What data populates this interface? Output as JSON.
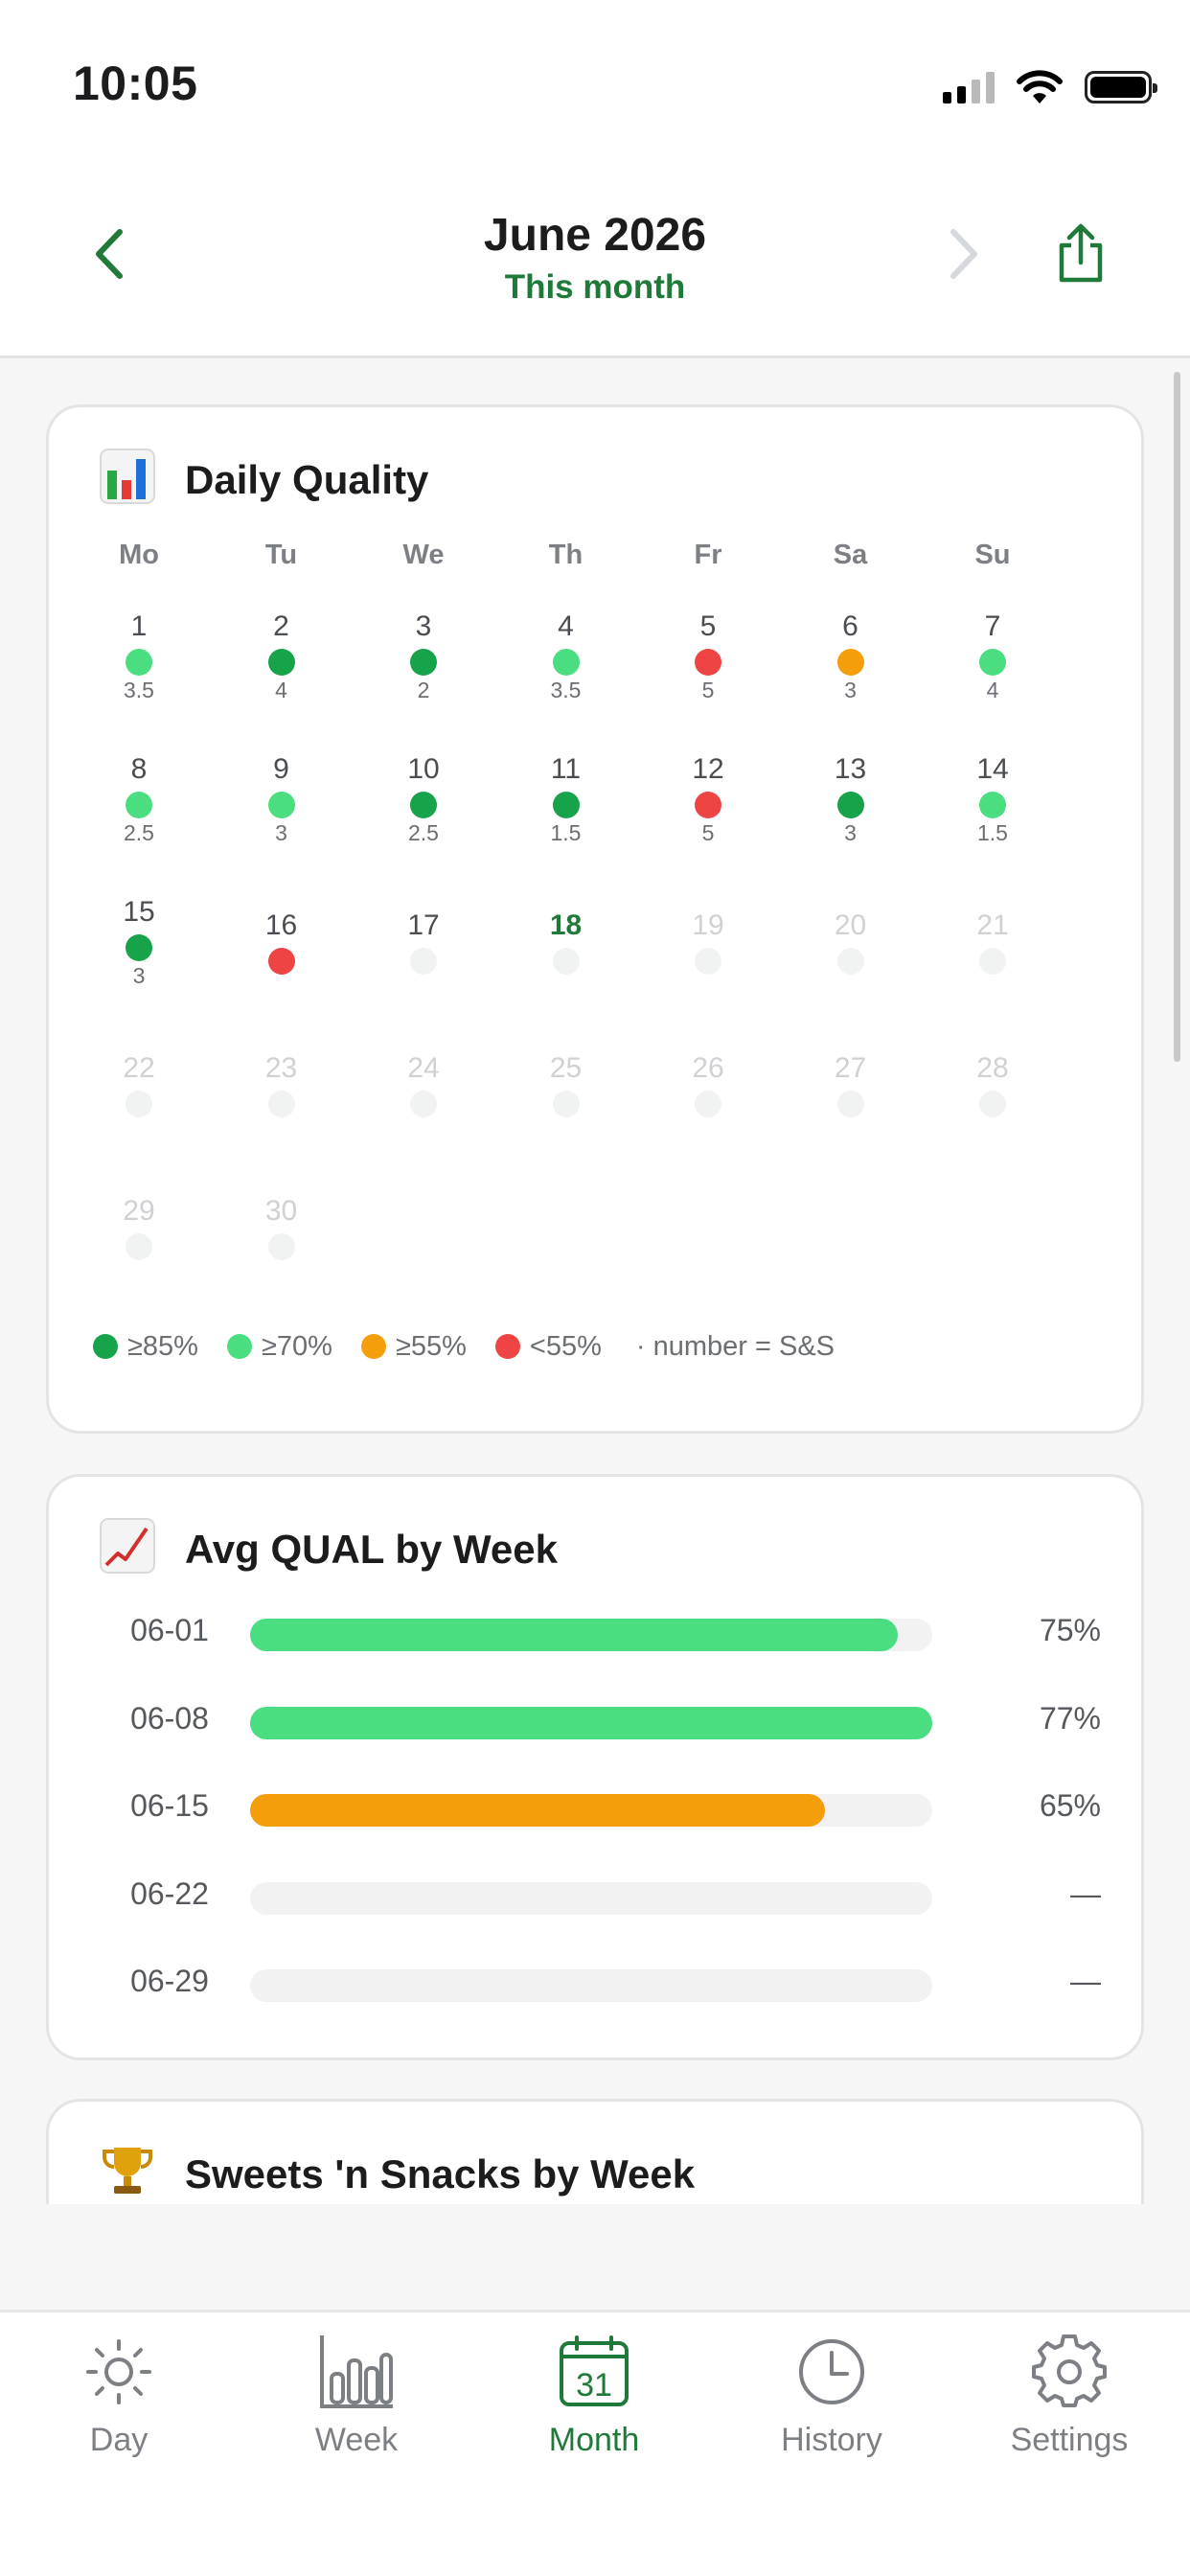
{
  "status_bar": {
    "time": "10:05"
  },
  "header": {
    "title": "June 2026",
    "subtitle": "This month"
  },
  "colors": {
    "accent": "#1f7a3a",
    "q85": "#16a34a",
    "q70": "#4ade80",
    "q55": "#f59e0b",
    "qlow": "#ef4444",
    "empty": "#f0f1f0"
  },
  "daily_quality": {
    "icon": "bar-chart-emoji",
    "title": "Daily Quality",
    "weekdays": [
      "Mo",
      "Tu",
      "We",
      "Th",
      "Fr",
      "Sa",
      "Su"
    ],
    "days": [
      {
        "day": "1",
        "status": "q70",
        "value": "3.5"
      },
      {
        "day": "2",
        "status": "q85",
        "value": "4"
      },
      {
        "day": "3",
        "status": "q85",
        "value": "2"
      },
      {
        "day": "4",
        "status": "q70",
        "value": "3.5"
      },
      {
        "day": "5",
        "status": "qlow",
        "value": "5"
      },
      {
        "day": "6",
        "status": "q55",
        "value": "3"
      },
      {
        "day": "7",
        "status": "q70",
        "value": "4"
      },
      {
        "day": "8",
        "status": "q70",
        "value": "2.5"
      },
      {
        "day": "9",
        "status": "q70",
        "value": "3"
      },
      {
        "day": "10",
        "status": "q85",
        "value": "2.5"
      },
      {
        "day": "11",
        "status": "q85",
        "value": "1.5"
      },
      {
        "day": "12",
        "status": "qlow",
        "value": "5"
      },
      {
        "day": "13",
        "status": "q85",
        "value": "3"
      },
      {
        "day": "14",
        "status": "q70",
        "value": "1.5"
      },
      {
        "day": "15",
        "status": "q85",
        "value": "3"
      },
      {
        "day": "16",
        "status": "qlow",
        "value": ""
      },
      {
        "day": "17",
        "status": "empty",
        "value": ""
      },
      {
        "day": "18",
        "status": "empty",
        "value": "",
        "today": true
      },
      {
        "day": "19",
        "status": "future",
        "value": ""
      },
      {
        "day": "20",
        "status": "future",
        "value": ""
      },
      {
        "day": "21",
        "status": "future",
        "value": ""
      },
      {
        "day": "22",
        "status": "future",
        "value": ""
      },
      {
        "day": "23",
        "status": "future",
        "value": ""
      },
      {
        "day": "24",
        "status": "future",
        "value": ""
      },
      {
        "day": "25",
        "status": "future",
        "value": ""
      },
      {
        "day": "26",
        "status": "future",
        "value": ""
      },
      {
        "day": "27",
        "status": "future",
        "value": ""
      },
      {
        "day": "28",
        "status": "future",
        "value": ""
      },
      {
        "day": "29",
        "status": "future",
        "value": ""
      },
      {
        "day": "30",
        "status": "future",
        "value": ""
      }
    ],
    "legend": [
      {
        "label": "≥85%",
        "status": "q85"
      },
      {
        "label": "≥70%",
        "status": "q70"
      },
      {
        "label": "≥55%",
        "status": "q55"
      },
      {
        "label": "<55%",
        "status": "qlow"
      }
    ],
    "legend_note": "· number = S&S"
  },
  "avg_qual": {
    "icon": "chart-increasing-emoji",
    "title": "Avg QUAL by Week",
    "rows": [
      {
        "week": "06-01",
        "percent": 75,
        "label": "75%",
        "status": "q70"
      },
      {
        "week": "06-08",
        "percent": 77,
        "label": "77%",
        "status": "q70"
      },
      {
        "week": "06-15",
        "percent": 65,
        "label": "65%",
        "status": "q55"
      },
      {
        "week": "06-22",
        "percent": 0,
        "label": "—",
        "status": "empty"
      },
      {
        "week": "06-29",
        "percent": 0,
        "label": "—",
        "status": "empty"
      }
    ]
  },
  "snacks": {
    "icon": "trophy-emoji",
    "title": "Sweets 'n Snacks by Week"
  },
  "tab_bar": {
    "items": [
      {
        "label": "Day",
        "icon": "sun-icon"
      },
      {
        "label": "Week",
        "icon": "bar-chart-icon"
      },
      {
        "label": "Month",
        "icon": "calendar-icon",
        "calendar_day": "31",
        "active": true
      },
      {
        "label": "History",
        "icon": "clock-icon"
      },
      {
        "label": "Settings",
        "icon": "gear-icon"
      }
    ]
  }
}
